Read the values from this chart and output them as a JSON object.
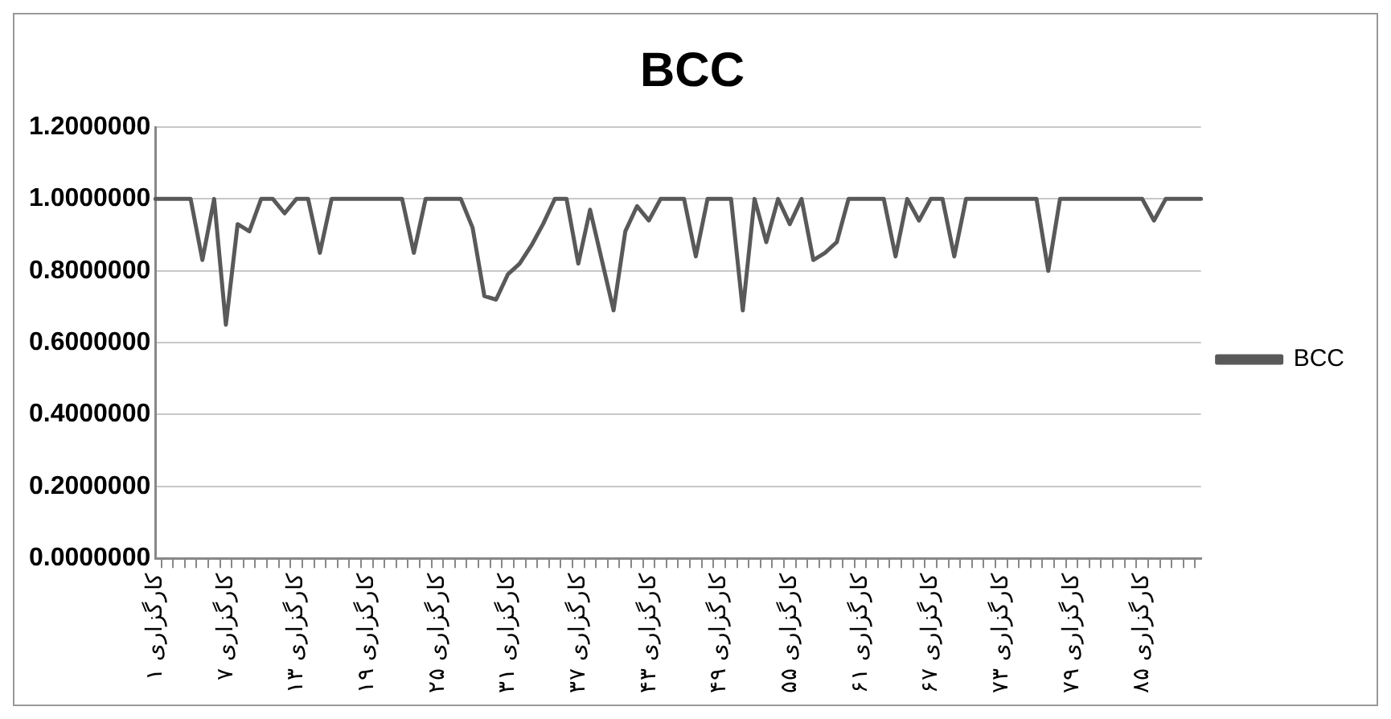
{
  "chart_data": {
    "type": "line",
    "title": "BCC",
    "categories": [
      "کارگزاری ۱",
      null,
      null,
      null,
      null,
      null,
      "کارگزاری ۷",
      null,
      null,
      null,
      null,
      null,
      "کارگزاری ۱۳",
      null,
      null,
      null,
      null,
      null,
      "کارگزاری ۱۹",
      null,
      null,
      null,
      null,
      null,
      "کارگزاری ۲۵",
      null,
      null,
      null,
      null,
      null,
      "کارگزاری ۳۱",
      null,
      null,
      null,
      null,
      null,
      "کارگزاری ۳۷",
      null,
      null,
      null,
      null,
      null,
      "کارگزاری ۴۳",
      null,
      null,
      null,
      null,
      null,
      "کارگزاری ۴۹",
      null,
      null,
      null,
      null,
      null,
      "کارگزاری ۵۵",
      null,
      null,
      null,
      null,
      null,
      "کارگزاری ۶۱",
      null,
      null,
      null,
      null,
      null,
      "کارگزاری ۶۷",
      null,
      null,
      null,
      null,
      null,
      "کارگزاری ۷۳",
      null,
      null,
      null,
      null,
      null,
      "کارگزاری ۷۹",
      null,
      null,
      null,
      null,
      null,
      "کارگزاری ۸۵",
      null,
      null,
      null,
      null,
      null
    ],
    "series": [
      {
        "name": "BCC",
        "color": "#595959",
        "values": [
          1,
          1,
          1,
          1,
          0.83,
          1,
          0.65,
          0.93,
          0.91,
          1,
          1,
          0.96,
          1,
          1,
          0.85,
          1,
          1,
          1,
          1,
          1,
          1,
          1,
          0.85,
          1,
          1,
          1,
          1,
          0.92,
          0.73,
          0.72,
          0.79,
          0.82,
          0.87,
          0.93,
          1,
          1,
          0.82,
          0.97,
          0.83,
          0.69,
          0.91,
          0.98,
          0.94,
          1,
          1,
          1,
          0.84,
          1,
          1,
          1,
          0.69,
          1,
          0.88,
          1,
          0.93,
          1,
          0.83,
          0.85,
          0.88,
          1,
          1,
          1,
          1,
          0.84,
          1,
          0.94,
          1,
          1,
          0.84,
          1,
          1,
          1,
          1,
          1,
          1,
          1,
          0.8,
          1,
          1,
          1,
          1,
          1,
          1,
          1,
          1,
          0.94,
          1,
          1,
          1,
          1
        ]
      }
    ],
    "ylim": [
      0,
      1.2
    ],
    "yticks": [
      {
        "value": 0,
        "label": "0.0000000"
      },
      {
        "value": 0.2,
        "label": "0.2000000"
      },
      {
        "value": 0.4,
        "label": "0.4000000"
      },
      {
        "value": 0.6,
        "label": "0.6000000"
      },
      {
        "value": 0.8,
        "label": "0.8000000"
      },
      {
        "value": 1,
        "label": "1.0000000"
      },
      {
        "value": 1.2,
        "label": "1.2000000"
      }
    ],
    "grid": "y",
    "legend": "right",
    "marker": "none",
    "line_style": "solid"
  }
}
